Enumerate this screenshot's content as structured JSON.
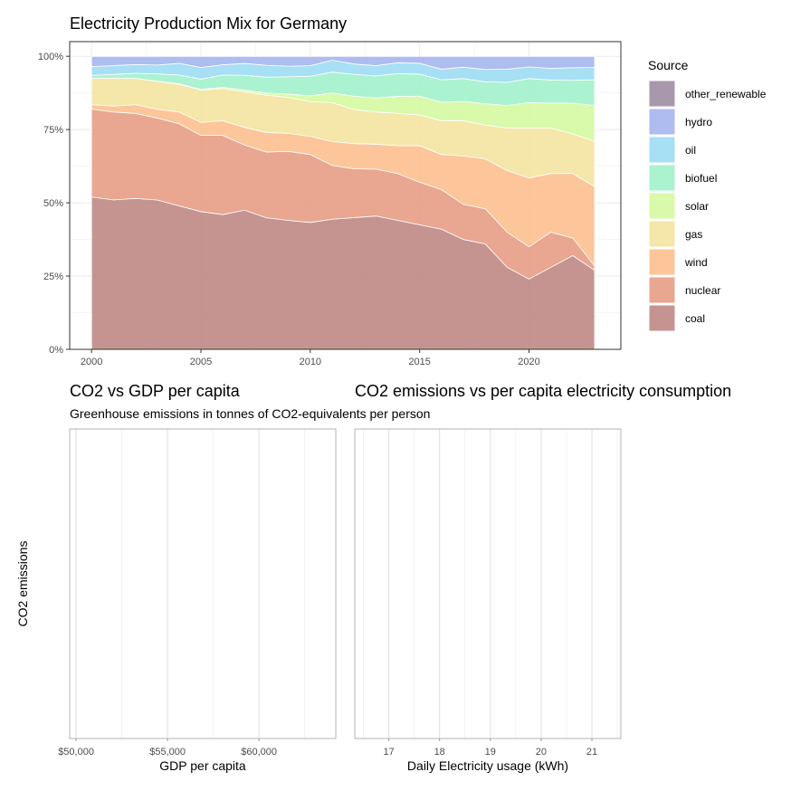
{
  "colors": {
    "other_renewable": "#9c8aa0",
    "hydro": "#a4b3ee",
    "oil": "#9bdbf3",
    "biofuel": "#9ff0cb",
    "solar": "#d3f99e",
    "gas": "#f4e39e",
    "wind": "#fcbe8c",
    "nuclear": "#e69a82",
    "coal": "#bd8582",
    "grid": "#ebebeb",
    "panel_border": "#333333",
    "empty_border": "#b3b3b3"
  },
  "chart_data": [
    {
      "type": "area",
      "title": "Electricity Production Mix for Germany",
      "xlabel": "",
      "ylabel": "",
      "stacked": true,
      "normalized": true,
      "x": [
        2000,
        2001,
        2002,
        2003,
        2004,
        2005,
        2006,
        2007,
        2008,
        2009,
        2010,
        2011,
        2012,
        2013,
        2014,
        2015,
        2016,
        2017,
        2018,
        2019,
        2020,
        2021,
        2022,
        2023
      ],
      "xlim": [
        1999.0,
        2024.2
      ],
      "ylim": [
        0,
        1.05
      ],
      "x_ticks": [
        2000,
        2005,
        2010,
        2015,
        2020
      ],
      "y_ticks": [
        0,
        0.25,
        0.5,
        0.75,
        1.0
      ],
      "y_tick_labels": [
        "0%",
        "25%",
        "50%",
        "75%",
        "100%"
      ],
      "grid": true,
      "legend_title": "Source",
      "legend_position": "right",
      "legend_order": [
        "other_renewable",
        "hydro",
        "oil",
        "biofuel",
        "solar",
        "gas",
        "wind",
        "nuclear",
        "coal"
      ],
      "series": [
        {
          "name": "coal",
          "values": [
            0.52,
            0.51,
            0.515,
            0.51,
            0.49,
            0.47,
            0.46,
            0.47,
            0.44,
            0.43,
            0.42,
            0.435,
            0.445,
            0.455,
            0.44,
            0.425,
            0.41,
            0.375,
            0.36,
            0.28,
            0.24,
            0.28,
            0.32,
            0.27
          ]
        },
        {
          "name": "nuclear",
          "values": [
            0.3,
            0.3,
            0.29,
            0.28,
            0.28,
            0.26,
            0.27,
            0.22,
            0.22,
            0.23,
            0.225,
            0.18,
            0.165,
            0.16,
            0.16,
            0.145,
            0.135,
            0.12,
            0.12,
            0.12,
            0.11,
            0.12,
            0.06,
            0.015
          ]
        },
        {
          "name": "wind",
          "values": [
            0.015,
            0.02,
            0.03,
            0.03,
            0.04,
            0.045,
            0.05,
            0.06,
            0.065,
            0.06,
            0.06,
            0.08,
            0.085,
            0.085,
            0.095,
            0.125,
            0.12,
            0.165,
            0.17,
            0.21,
            0.235,
            0.2,
            0.22,
            0.27
          ]
        },
        {
          "name": "gas",
          "values": [
            0.09,
            0.095,
            0.09,
            0.095,
            0.095,
            0.11,
            0.11,
            0.12,
            0.125,
            0.12,
            0.115,
            0.13,
            0.115,
            0.11,
            0.11,
            0.105,
            0.115,
            0.12,
            0.115,
            0.145,
            0.17,
            0.155,
            0.135,
            0.155
          ]
        },
        {
          "name": "solar",
          "values": [
            0.0,
            0.0,
            0.0,
            0.001,
            0.001,
            0.002,
            0.004,
            0.006,
            0.007,
            0.011,
            0.019,
            0.032,
            0.045,
            0.048,
            0.058,
            0.064,
            0.063,
            0.066,
            0.073,
            0.077,
            0.087,
            0.085,
            0.105,
            0.122
          ]
        },
        {
          "name": "biofuel",
          "values": [
            0.01,
            0.013,
            0.017,
            0.025,
            0.03,
            0.035,
            0.042,
            0.05,
            0.053,
            0.058,
            0.065,
            0.07,
            0.074,
            0.075,
            0.078,
            0.075,
            0.077,
            0.078,
            0.075,
            0.079,
            0.082,
            0.079,
            0.078,
            0.088
          ]
        },
        {
          "name": "oil",
          "values": [
            0.03,
            0.03,
            0.03,
            0.03,
            0.04,
            0.04,
            0.035,
            0.04,
            0.04,
            0.035,
            0.035,
            0.04,
            0.035,
            0.035,
            0.037,
            0.037,
            0.036,
            0.039,
            0.042,
            0.045,
            0.04,
            0.04,
            0.043,
            0.042
          ]
        },
        {
          "name": "hydro",
          "values": [
            0.035,
            0.032,
            0.028,
            0.03,
            0.024,
            0.038,
            0.029,
            0.024,
            0.03,
            0.033,
            0.031,
            0.013,
            0.026,
            0.032,
            0.022,
            0.024,
            0.044,
            0.037,
            0.045,
            0.044,
            0.036,
            0.041,
            0.039,
            0.038
          ]
        },
        {
          "name": "other_renewable",
          "values": [
            0.0,
            0.0,
            0.0,
            0.0,
            0.0,
            0.0,
            0.0,
            0.0,
            0.0,
            0.0,
            0.0,
            0.0,
            0.0,
            0.0,
            0.0,
            0.0,
            0.0,
            0.0,
            0.0,
            0.0,
            0.0,
            0.0,
            0.0,
            0.0
          ]
        }
      ]
    },
    {
      "type": "scatter",
      "title": "CO2 vs GDP per capita",
      "subtitle": "Greenhouse emissions in tonnes of CO2-equivalents per person",
      "xlabel": "GDP per capita",
      "ylabel": "CO2 emissions",
      "xlim": [
        49650,
        64200
      ],
      "x_ticks": [
        50000,
        55000,
        60000
      ],
      "x_tick_labels": [
        "$50,000",
        "$55,000",
        "$60,000"
      ],
      "grid": true,
      "points": []
    },
    {
      "type": "scatter",
      "title": "CO2 emissions vs per capita electricity consumption",
      "xlabel": "Daily Electricity usage (kWh)",
      "ylabel": "",
      "xlim": [
        16.33,
        21.57
      ],
      "x_ticks": [
        17,
        18,
        19,
        20,
        21
      ],
      "x_tick_labels": [
        "17",
        "18",
        "19",
        "20",
        "21"
      ],
      "grid": true,
      "points": []
    }
  ]
}
